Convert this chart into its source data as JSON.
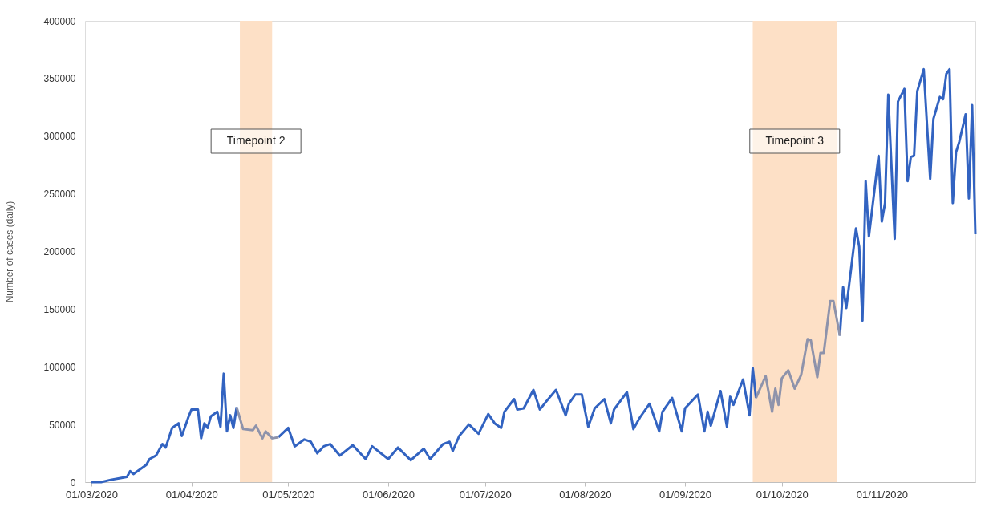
{
  "chart_data": {
    "type": "line",
    "ylabel": "Number  of cases (daily)",
    "x": [
      "2020-03-01",
      "2020-03-04",
      "2020-03-07",
      "2020-03-10",
      "2020-03-12",
      "2020-03-13",
      "2020-03-14",
      "2020-03-16",
      "2020-03-18",
      "2020-03-19",
      "2020-03-21",
      "2020-03-23",
      "2020-03-24",
      "2020-03-26",
      "2020-03-28",
      "2020-03-29",
      "2020-03-31",
      "2020-04-01",
      "2020-04-03",
      "2020-04-04",
      "2020-04-05",
      "2020-04-06",
      "2020-04-07",
      "2020-04-09",
      "2020-04-10",
      "2020-04-11",
      "2020-04-12",
      "2020-04-13",
      "2020-04-14",
      "2020-04-15",
      "2020-04-17",
      "2020-04-20",
      "2020-04-21",
      "2020-04-23",
      "2020-04-24",
      "2020-04-26",
      "2020-04-28",
      "2020-05-01",
      "2020-05-03",
      "2020-05-06",
      "2020-05-08",
      "2020-05-10",
      "2020-05-12",
      "2020-05-14",
      "2020-05-17",
      "2020-05-21",
      "2020-05-25",
      "2020-05-27",
      "2020-06-01",
      "2020-06-04",
      "2020-06-08",
      "2020-06-12",
      "2020-06-14",
      "2020-06-18",
      "2020-06-20",
      "2020-06-21",
      "2020-06-23",
      "2020-06-26",
      "2020-06-29",
      "2020-07-02",
      "2020-07-04",
      "2020-07-06",
      "2020-07-07",
      "2020-07-10",
      "2020-07-11",
      "2020-07-13",
      "2020-07-16",
      "2020-07-18",
      "2020-07-20",
      "2020-07-23",
      "2020-07-26",
      "2020-07-27",
      "2020-07-29",
      "2020-07-31",
      "2020-08-02",
      "2020-08-04",
      "2020-08-07",
      "2020-08-09",
      "2020-08-10",
      "2020-08-14",
      "2020-08-16",
      "2020-08-18",
      "2020-08-21",
      "2020-08-24",
      "2020-08-25",
      "2020-08-28",
      "2020-08-31",
      "2020-09-01",
      "2020-09-05",
      "2020-09-07",
      "2020-09-08",
      "2020-09-09",
      "2020-09-12",
      "2020-09-14",
      "2020-09-15",
      "2020-09-16",
      "2020-09-19",
      "2020-09-21",
      "2020-09-22",
      "2020-09-23",
      "2020-09-26",
      "2020-09-28",
      "2020-09-29",
      "2020-09-30",
      "2020-10-01",
      "2020-10-03",
      "2020-10-05",
      "2020-10-07",
      "2020-10-09",
      "2020-10-10",
      "2020-10-12",
      "2020-10-13",
      "2020-10-14",
      "2020-10-16",
      "2020-10-17",
      "2020-10-19",
      "2020-10-20",
      "2020-10-21",
      "2020-10-24",
      "2020-10-25",
      "2020-10-26",
      "2020-10-27",
      "2020-10-28",
      "2020-10-31",
      "2020-11-01",
      "2020-11-02",
      "2020-11-03",
      "2020-11-05",
      "2020-11-06",
      "2020-11-08",
      "2020-11-09",
      "2020-11-10",
      "2020-11-11",
      "2020-11-12",
      "2020-11-14",
      "2020-11-16",
      "2020-11-17",
      "2020-11-19",
      "2020-11-20",
      "2020-11-21",
      "2020-11-22",
      "2020-11-23",
      "2020-11-24",
      "2020-11-25",
      "2020-11-27",
      "2020-11-28",
      "2020-11-29",
      "2020-11-30"
    ],
    "series": [
      {
        "color": "#3263c1",
        "values": [
          0,
          0,
          2000,
          3500,
          4500,
          9500,
          7000,
          11000,
          15000,
          20000,
          23000,
          33000,
          30000,
          47000,
          51000,
          40000,
          56000,
          63000,
          63000,
          38000,
          51000,
          47000,
          57000,
          61000,
          48000,
          94000,
          44000,
          58000,
          47000,
          65000,
          null,
          null,
          null,
          null,
          null,
          null,
          39000,
          47000,
          31000,
          37000,
          35000,
          25000,
          31000,
          33000,
          23000,
          32000,
          20000,
          31000,
          20000,
          30000,
          19000,
          29000,
          20000,
          33000,
          35000,
          27000,
          40000,
          50000,
          42000,
          59000,
          51000,
          47000,
          61000,
          72000,
          63000,
          64000,
          80000,
          63000,
          70000,
          80000,
          58000,
          68000,
          76000,
          76000,
          48000,
          64000,
          72000,
          51000,
          63000,
          78000,
          46000,
          56000,
          68000,
          44000,
          61000,
          73000,
          44000,
          64000,
          76000,
          44000,
          61000,
          49000,
          79000,
          48000,
          74000,
          67000,
          89000,
          58000,
          99000,
          73000,
          null,
          null,
          null,
          null,
          null,
          null,
          null,
          null,
          null,
          null,
          null,
          null,
          null,
          null,
          null,
          127000,
          169000,
          151000,
          220000,
          204000,
          140000,
          261000,
          213000,
          283000,
          226000,
          242000,
          336000,
          211000,
          330000,
          341000,
          261000,
          282000,
          283000,
          339000,
          358000,
          263000,
          315000,
          334000,
          332000,
          354000,
          358000,
          242000,
          286000,
          295000,
          319000,
          246000,
          327000,
          215000
        ]
      },
      {
        "color": "#8e93ab",
        "values": [
          null,
          null,
          null,
          null,
          null,
          null,
          null,
          null,
          null,
          null,
          null,
          null,
          null,
          null,
          null,
          null,
          null,
          null,
          null,
          null,
          null,
          null,
          null,
          null,
          null,
          null,
          null,
          null,
          null,
          65000,
          46000,
          45000,
          49000,
          38000,
          44000,
          38000,
          39000,
          null,
          null,
          null,
          null,
          null,
          null,
          null,
          null,
          null,
          null,
          null,
          null,
          null,
          null,
          null,
          null,
          null,
          null,
          null,
          null,
          null,
          null,
          null,
          null,
          null,
          null,
          null,
          null,
          null,
          null,
          null,
          null,
          null,
          null,
          null,
          null,
          null,
          null,
          null,
          null,
          null,
          null,
          null,
          null,
          null,
          null,
          null,
          null,
          null,
          null,
          null,
          null,
          null,
          null,
          null,
          null,
          null,
          null,
          null,
          null,
          null,
          null,
          73000,
          92000,
          61000,
          81000,
          67000,
          90000,
          97000,
          81000,
          93000,
          124000,
          123000,
          91000,
          112000,
          112000,
          157000,
          157000,
          127000,
          null,
          null,
          null,
          null,
          null,
          null,
          null,
          null,
          null,
          null,
          null,
          null,
          null,
          null,
          null,
          null,
          null,
          null,
          null,
          null,
          null,
          null,
          null,
          null,
          null,
          null,
          null,
          null,
          null,
          null,
          null,
          null
        ]
      }
    ],
    "xlim": [
      "2020-02-28",
      "2020-11-30"
    ],
    "xticks": [
      {
        "value": "2020-03-01",
        "label": "01/03/2020"
      },
      {
        "value": "2020-04-01",
        "label": "01/04/2020"
      },
      {
        "value": "2020-05-01",
        "label": "01/05/2020"
      },
      {
        "value": "2020-06-01",
        "label": "01/06/2020"
      },
      {
        "value": "2020-07-01",
        "label": "01/07/2020"
      },
      {
        "value": "2020-08-01",
        "label": "01/08/2020"
      },
      {
        "value": "2020-09-01",
        "label": "01/09/2020"
      },
      {
        "value": "2020-10-01",
        "label": "01/10/2020"
      },
      {
        "value": "2020-11-01",
        "label": "01/11/2020"
      }
    ],
    "ylim": [
      0,
      400000
    ],
    "yticks": [
      0,
      50000,
      100000,
      150000,
      200000,
      250000,
      300000,
      350000,
      400000
    ],
    "bands": [
      {
        "axis": "x",
        "from": "2020-04-16",
        "to": "2020-04-26",
        "label": "Timepoint 2",
        "color": "#fde0c6"
      },
      {
        "axis": "x",
        "from": "2020-09-22",
        "to": "2020-10-18",
        "label": "Timepoint 3",
        "color": "#fde0c6"
      }
    ],
    "grid": false,
    "line_style": "solid",
    "marker": "none"
  }
}
